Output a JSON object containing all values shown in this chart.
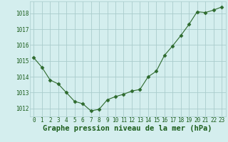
{
  "x": [
    0,
    1,
    2,
    3,
    4,
    5,
    6,
    7,
    8,
    9,
    10,
    11,
    12,
    13,
    14,
    15,
    16,
    17,
    18,
    19,
    20,
    21,
    22,
    23
  ],
  "y": [
    1015.2,
    1014.6,
    1013.8,
    1013.55,
    1013.0,
    1012.45,
    1012.3,
    1011.85,
    1011.95,
    1012.55,
    1012.75,
    1012.9,
    1013.1,
    1013.2,
    1014.0,
    1014.35,
    1015.35,
    1015.95,
    1016.6,
    1017.3,
    1018.1,
    1018.05,
    1018.2,
    1018.4
  ],
  "line_color": "#2d6a2d",
  "marker": "D",
  "marker_size": 2.5,
  "bg_color": "#d4eeee",
  "grid_color": "#aacccc",
  "xlabel": "Graphe pression niveau de la mer (hPa)",
  "xlabel_color": "#1a5c1a",
  "ylim": [
    1011.5,
    1018.75
  ],
  "yticks": [
    1012,
    1013,
    1014,
    1015,
    1016,
    1017,
    1018
  ],
  "xticks": [
    0,
    1,
    2,
    3,
    4,
    5,
    6,
    7,
    8,
    9,
    10,
    11,
    12,
    13,
    14,
    15,
    16,
    17,
    18,
    19,
    20,
    21,
    22,
    23
  ],
  "tick_label_color": "#1a5c1a",
  "tick_label_fontsize": 5.5,
  "xlabel_fontsize": 7.5
}
